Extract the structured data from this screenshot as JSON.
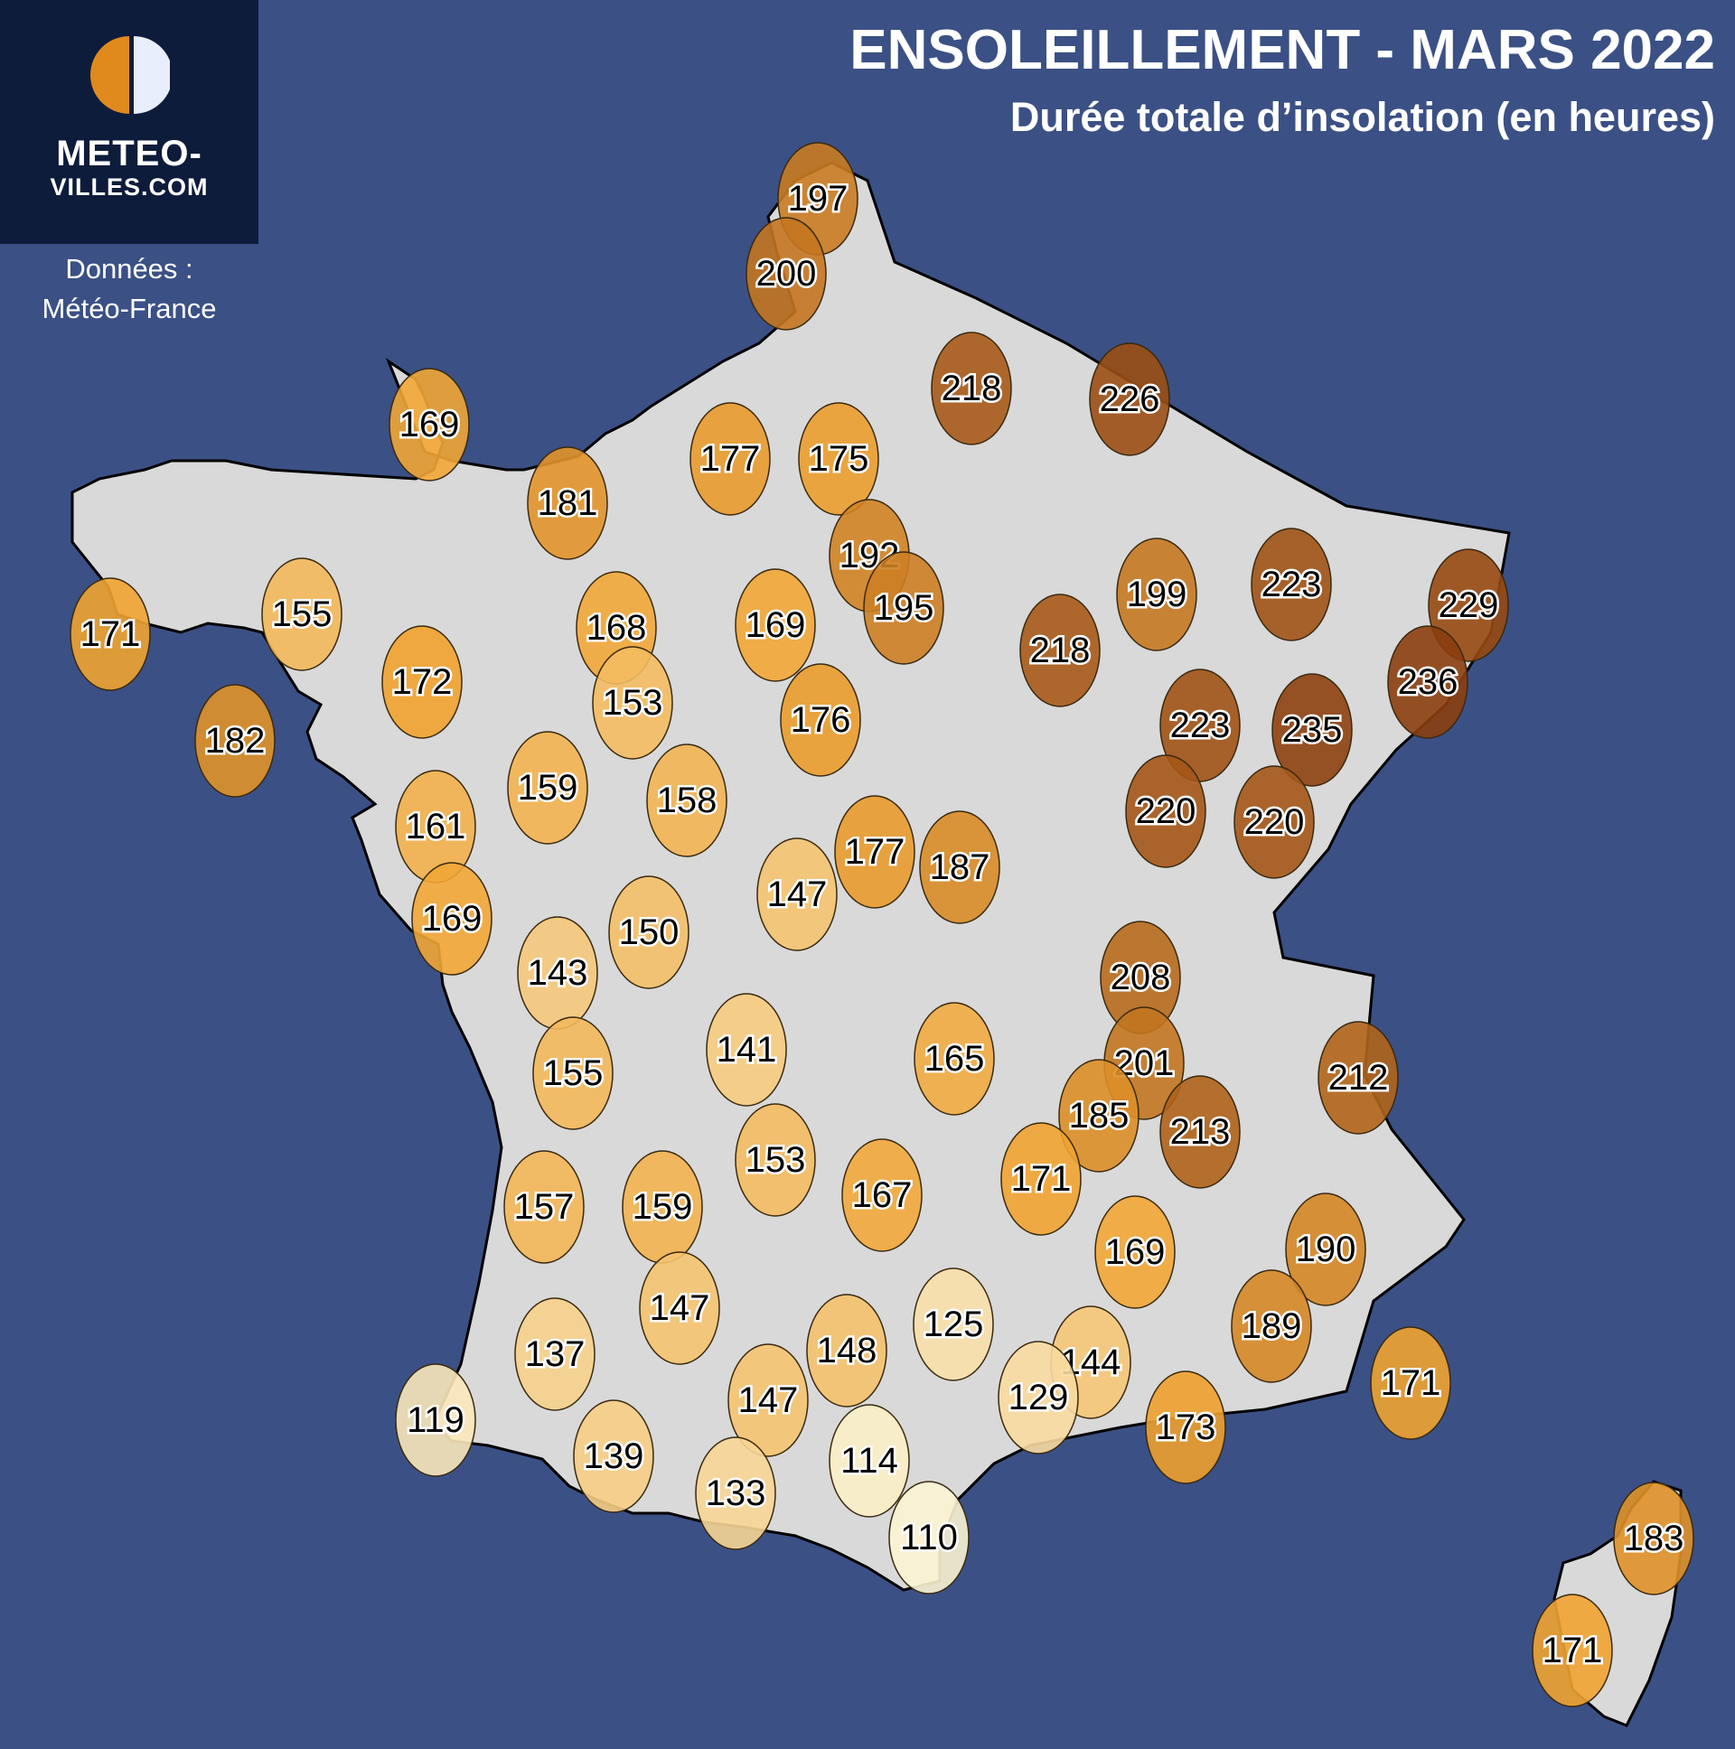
{
  "header": {
    "title": "ENSOLEILLEMENT - MARS 2022",
    "subtitle": "Durée totale d’insolation (en heures)"
  },
  "logo": {
    "line1": "METEO-",
    "line2": "VILLES.COM"
  },
  "source": {
    "line1": "Données :",
    "line2": "Météo-France"
  },
  "colors": {
    "ocean": "#3b5085",
    "land": "#d9d9d9",
    "logo_bg": "#0e1c3b",
    "scale_low": "#fbf3d2",
    "scale_mid": "#f0a22e",
    "scale_high": "#8b3e0f"
  },
  "chart_data": {
    "type": "map",
    "unit": "heures",
    "values": [
      197,
      200,
      169,
      181,
      177,
      175,
      218,
      226,
      171,
      155,
      168,
      169,
      192,
      195,
      199,
      223,
      229,
      172,
      153,
      176,
      218,
      223,
      235,
      236,
      182,
      159,
      158,
      220,
      220,
      161,
      177,
      187,
      147,
      169,
      150,
      143,
      208,
      141,
      165,
      155,
      201,
      212,
      185,
      213,
      153,
      171,
      157,
      159,
      167,
      169,
      190,
      147,
      125,
      189,
      148,
      137,
      144,
      171,
      147,
      129,
      173,
      119,
      139,
      114,
      133,
      110,
      183,
      171
    ]
  }
}
